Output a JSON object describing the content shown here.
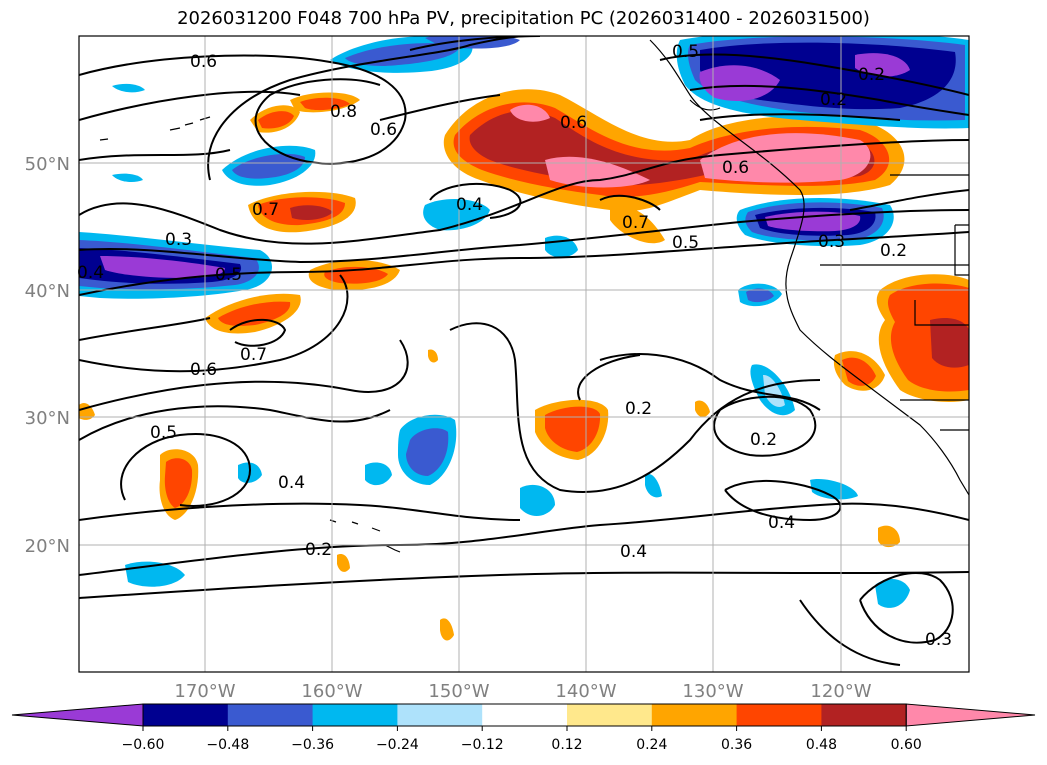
{
  "title": "2026031200 F048 700 hPa PV, precipitation PC (2026031400 - 2026031500)",
  "lat_labels": [
    "50°N",
    "40°N",
    "30°N",
    "20°N"
  ],
  "lon_labels": [
    "170°W",
    "160°W",
    "150°W",
    "140°W",
    "130°W",
    "120°W"
  ],
  "contour_labels": [
    "0.6",
    "0.8",
    "0.6",
    "0.7",
    "0.2",
    "0.3",
    "0.4",
    "0.5",
    "0.7",
    "0.6",
    "0.4",
    "0.6",
    "0.7",
    "0.5",
    "0.6",
    "0.5",
    "0.3",
    "0.2",
    "0.2",
    "0.2",
    "0.5",
    "0.4",
    "0.2",
    "0.4",
    "0.4",
    "0.3",
    "0.2"
  ],
  "colorbar": {
    "ticks": [
      "−0.60",
      "−0.48",
      "−0.36",
      "−0.24",
      "−0.12",
      "0.12",
      "0.24",
      "0.36",
      "0.48",
      "0.60"
    ],
    "colors": [
      "#9a3ad6",
      "#000090",
      "#3a5ad0",
      "#00b8f0",
      "#aee2fb",
      "#ffffff",
      "#ffe88c",
      "#ffa500",
      "#ff4500",
      "#b22222",
      "#ff88aa",
      "#ff88aa"
    ],
    "extend": "both"
  },
  "colors": {
    "purple": "#9a3ad6",
    "navy": "#000090",
    "blue": "#3a5ad0",
    "cyan": "#00b8f0",
    "lightblue": "#aee2fb",
    "yellow": "#ffe88c",
    "orange": "#ffa500",
    "redorange": "#ff4500",
    "firebrick": "#b22222",
    "pink": "#ff88aa"
  }
}
